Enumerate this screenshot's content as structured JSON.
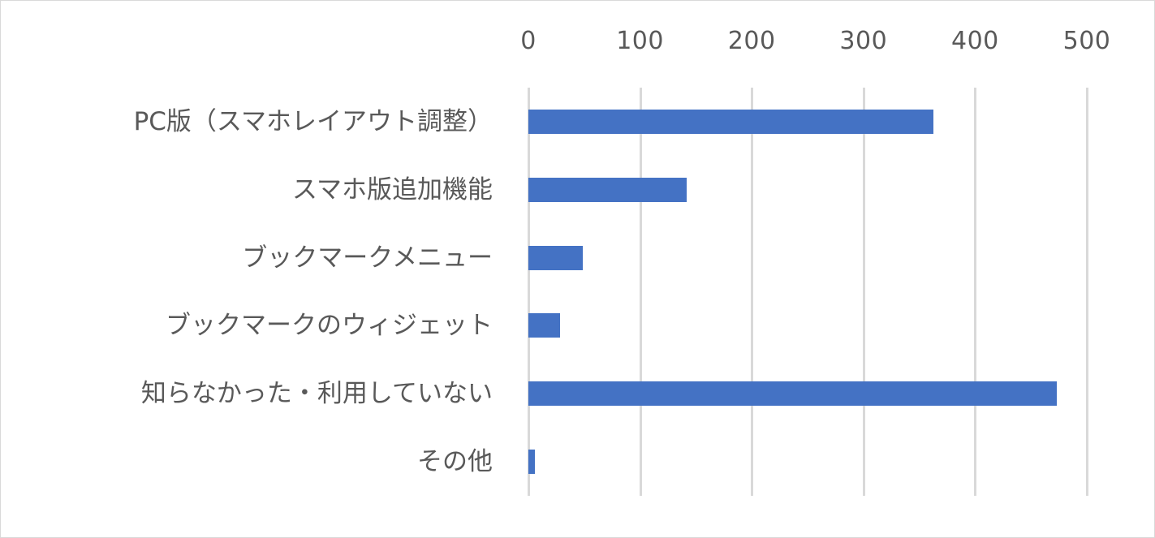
{
  "chart_data": {
    "type": "bar",
    "orientation": "horizontal",
    "title": "",
    "xlabel": "",
    "ylabel": "",
    "categories": [
      "PC版（スマホレイアウト調整）",
      "スマホ版追加機能",
      "ブックマークメニュー",
      "ブックマークのウィジェット",
      "知らなかった・利用していない",
      "その他"
    ],
    "values": [
      363,
      142,
      49,
      28,
      473,
      6
    ],
    "xlim": [
      0,
      500
    ],
    "x_ticks": [
      "0",
      "100",
      "200",
      "300",
      "400",
      "500"
    ],
    "x_axis_position": "top",
    "grid": true,
    "legend": null,
    "bar_color": "#4472c4"
  }
}
